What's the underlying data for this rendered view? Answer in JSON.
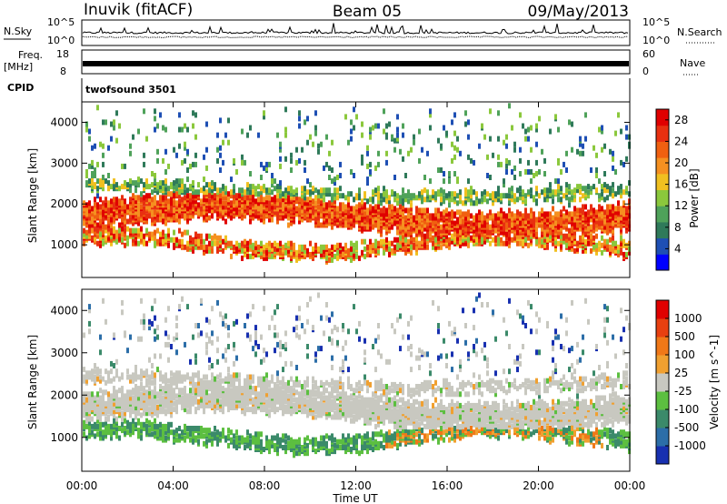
{
  "header": {
    "station": "Inuvik (fitACF)",
    "beam": "Beam 05",
    "date": "09/May/2013"
  },
  "top_panels": {
    "nsky_label": "N.Sky",
    "nsearch_label": "N.Search",
    "noise_ticks": [
      "10^5",
      "10^0"
    ],
    "freq_label": "Freq.",
    "freq_unit": "[MHz]",
    "freq_ticks": [
      "18",
      "8"
    ],
    "nave_label": "Nave",
    "nave_ticks": [
      "60",
      "0"
    ],
    "cpid_label": "CPID",
    "cpid_value": "twofsound 3501"
  },
  "colors": {
    "power": [
      "#0000ff",
      "#1e4fb4",
      "#2f7a5a",
      "#4fa25a",
      "#8bc83c",
      "#f0c020",
      "#f59020",
      "#f06010",
      "#e83010",
      "#e00000"
    ],
    "velocity": [
      "#1830b0",
      "#2c6ea8",
      "#3b8a6a",
      "#5cbf40",
      "#c8c8c0",
      "#f0a030",
      "#f07818",
      "#e84010",
      "#e00000"
    ]
  },
  "chart_data": [
    {
      "type": "heatmap",
      "title": "Power",
      "ylabel": "Slant Range [km]",
      "xlabel": "Time UT",
      "x_ticks": [
        "00:00",
        "04:00",
        "08:00",
        "12:00",
        "16:00",
        "20:00",
        "00:00"
      ],
      "y_ticks": [
        1000,
        2000,
        3000,
        4000
      ],
      "ylim": [
        200,
        4500
      ],
      "colorbar_label": "Power [dB]",
      "colorbar_ticks": [
        4,
        8,
        12,
        16,
        20,
        24,
        28
      ],
      "colorbar_range": [
        0,
        30
      ]
    },
    {
      "type": "heatmap",
      "title": "Velocity",
      "ylabel": "Slant Range [km]",
      "xlabel": "Time UT",
      "x_ticks": [
        "00:00",
        "04:00",
        "08:00",
        "12:00",
        "16:00",
        "20:00",
        "00:00"
      ],
      "y_ticks": [
        1000,
        2000,
        3000,
        4000
      ],
      "ylim": [
        200,
        4500
      ],
      "colorbar_label": "Velocity [m s^-1]",
      "colorbar_ticks": [
        "1000",
        "500",
        "100",
        "25",
        "-25",
        "-100",
        "-500",
        "-1000"
      ]
    }
  ]
}
